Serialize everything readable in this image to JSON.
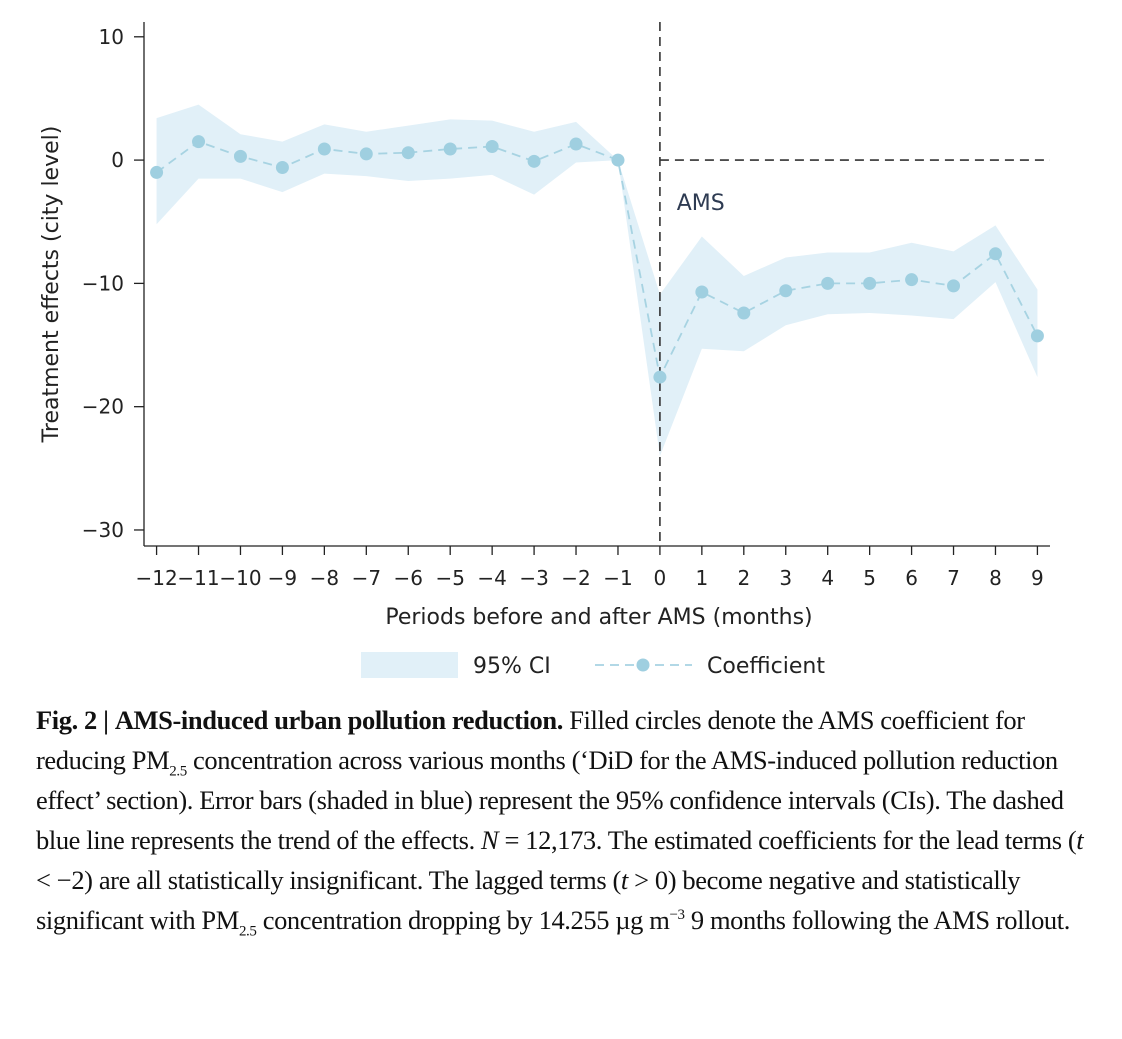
{
  "chart_data": {
    "type": "line",
    "x": [
      -12,
      -11,
      -10,
      -9,
      -8,
      -7,
      -6,
      -5,
      -4,
      -3,
      -2,
      -1,
      0,
      1,
      2,
      3,
      4,
      5,
      6,
      7,
      8,
      9
    ],
    "x_tick_labels": [
      "−12",
      "−11",
      "−10",
      "−9",
      "−8",
      "−7",
      "−6",
      "−5",
      "−4",
      "−3",
      "−2",
      "−1",
      "0",
      "1",
      "2",
      "3",
      "4",
      "5",
      "6",
      "7",
      "8",
      "9"
    ],
    "series": [
      {
        "name": "Coefficient",
        "values": [
          -1.0,
          1.5,
          0.3,
          -0.6,
          0.9,
          0.5,
          0.6,
          0.9,
          1.1,
          -0.1,
          1.3,
          0.0,
          -17.6,
          -10.7,
          -12.4,
          -10.6,
          -10.0,
          -10.0,
          -9.7,
          -10.2,
          -7.6,
          -14.255
        ]
      }
    ],
    "ci_lower": [
      -5.2,
      -1.5,
      -1.5,
      -2.6,
      -1.1,
      -1.3,
      -1.7,
      -1.5,
      -1.2,
      -2.8,
      -0.2,
      0.0,
      -24.0,
      -15.3,
      -15.5,
      -13.4,
      -12.5,
      -12.4,
      -12.6,
      -12.9,
      -9.9,
      -17.6
    ],
    "ci_upper": [
      3.4,
      4.5,
      2.1,
      1.5,
      2.9,
      2.3,
      2.8,
      3.3,
      3.2,
      2.3,
      3.1,
      0.0,
      -10.9,
      -6.2,
      -9.4,
      -7.9,
      -7.5,
      -7.5,
      -6.7,
      -7.4,
      -5.3,
      -10.5
    ],
    "ci_label": "95% CI",
    "title": "",
    "xlabel": "Periods before and after AMS (months)",
    "ylabel": "Treatment effects (city level)",
    "y_ticks": [
      10,
      0,
      -10,
      -20,
      -30
    ],
    "y_tick_labels": [
      "10",
      "0",
      "−10",
      "−20",
      "−30"
    ],
    "xlim": [
      -12.3,
      9.3
    ],
    "ylim": [
      -31.3,
      11.2
    ],
    "reference_lines": {
      "vertical_x": 0,
      "horizontal_y": 0,
      "style": "dashed"
    },
    "annotation": {
      "text": "AMS",
      "x": 0.4,
      "y": -3.4
    },
    "legend": {
      "position": "bottom-center",
      "entries": [
        "95% CI",
        "Coefficient"
      ]
    },
    "grid": false,
    "colors": {
      "ci_fill": "#e1f0f8",
      "line": "#a7d3e2",
      "marker": "#9fcfe0",
      "ref_line": "#333333",
      "axis": "#222222"
    }
  },
  "caption": {
    "label": "Fig. 2",
    "separator": "|",
    "title": "AMS-induced urban pollution reduction.",
    "text_1": " Filled circles denote the AMS coefficient for reducing PM",
    "sub_1": "2.5",
    "text_2": " concentration across various months (‘DiD for the AMS-induced pollution reduction effect’ section). Error bars (shaded in blue) represent the 95% confidence intervals (CIs). The dashed blue line represents the trend of the effects. ",
    "n_symbol": "N",
    "text_3": " = 12,173. The estimated coefficients for the lead terms (",
    "t_symbol_1": "t",
    "text_4": " < −2) are all statistically insignificant. The lagged terms (",
    "t_symbol_2": "t",
    "text_5": " > 0) become negative and statistically significant with PM",
    "sub_2": "2.5",
    "text_6": " concentration dropping by 14.255 µg m",
    "sup_1": "−3",
    "text_7": " 9 months following the AMS rollout."
  }
}
